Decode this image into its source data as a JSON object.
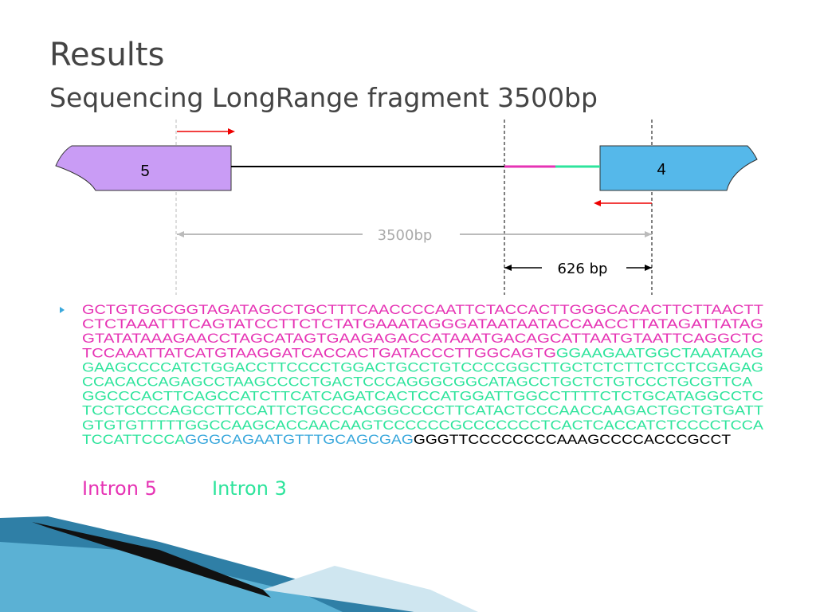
{
  "header": {
    "title": "Results",
    "subtitle": "Sequencing LongRange fragment 3500bp"
  },
  "diagram": {
    "exon_left": "5",
    "exon_right": "4",
    "span_total": "3500bp",
    "span_sequenced": "626 bp"
  },
  "sequence": {
    "lines": [
      [
        {
          "text": "GCTGTGGCGGTAGATAGCCTGCTTTCAACCCCAATTCTACCACTTGGGCACACTTCTTAACTT",
          "color": "#e633b4"
        }
      ],
      [
        {
          "text": "CTCTAAATTTCAGTATCCTTCTCTATGAAATAGGGATAATAATACCAACCTTATAGATTATAG",
          "color": "#e633b4"
        }
      ],
      [
        {
          "text": "GTATATAAAGAACCTAGCATAGTGAAGAGACCATAAATGACAGCATTAATGTAATTCAGGCTC",
          "color": "#e633b4"
        }
      ],
      [
        {
          "text": "TCCAAATTATCATGTAAGGATCACCACTGATACCCTTGGCAGTG",
          "color": "#e633b4"
        },
        {
          "text": "GGAAGAATGGCTAAATAAG",
          "color": "#2ee49c"
        }
      ],
      [
        {
          "text": "GAAGCCCCATCTGGACCTTCCCCTGGACTGCCTGTCCCCGGCTTGCTCTCTTCTCCTCGAGAG",
          "color": "#2ee49c"
        }
      ],
      [
        {
          "text": "CCACACCAGAGCCTAAGCCCCTGACTCCCAGGGCGGCATAGCCTGCTCTGTCCCTGCGTTCA",
          "color": "#2ee49c"
        }
      ],
      [
        {
          "text": "GGCCCACTTCAGCCATCTTCATCAGATCACTCCATGGATTGGCCTTTTCTCTGCATAGGCCTC",
          "color": "#2ee49c"
        }
      ],
      [
        {
          "text": "TCCTCCCCAGCCTTCCATTCTGCCCACGGCCCCTTCATACTCCCAACCAAGACTGCTGTGATT",
          "color": "#2ee49c"
        }
      ],
      [
        {
          "text": "GTGTGTTTTTGGCCAAGCACCAACAAGTCCCCCCGCCCCCCCTCACTCACCATCTCCCCTCCA",
          "color": "#2ee49c"
        }
      ],
      [
        {
          "text": "TCCATTCCCA",
          "color": "#2ee49c"
        },
        {
          "text": "GGGCAGAATGTTTGCAGCGAG",
          "color": "#3aa8dc"
        },
        {
          "text": "GGGTTCCCCCCCCAAAGCCCCACCCGCCT",
          "color": "#000000"
        }
      ]
    ]
  },
  "legend": [
    {
      "text": "Intron 5",
      "color": "#e633b4"
    },
    {
      "text": "Intron 3",
      "color": "#2ee49c"
    }
  ]
}
